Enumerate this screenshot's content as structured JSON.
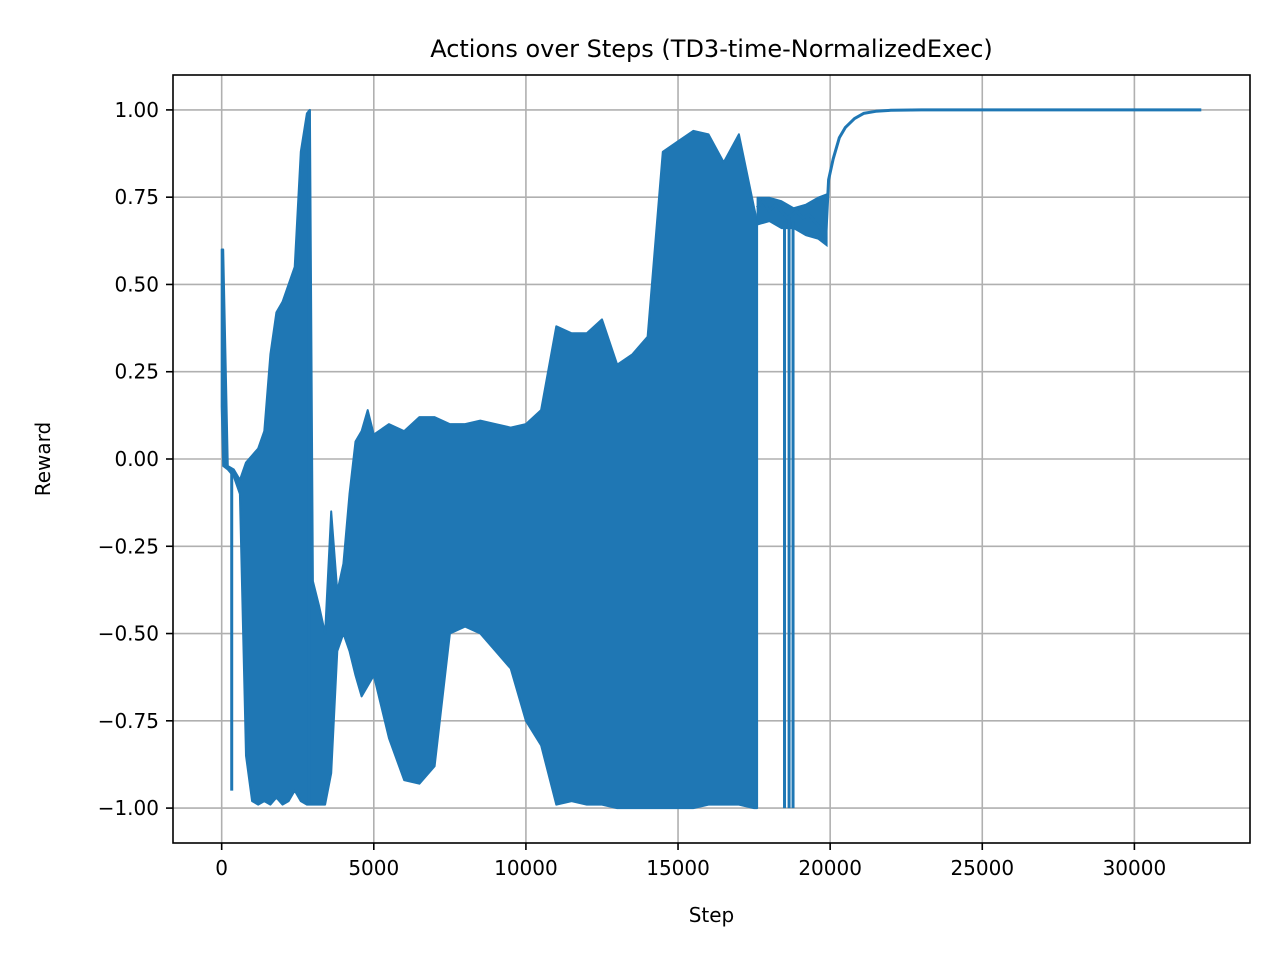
{
  "chart_data": {
    "type": "line",
    "title": "Actions over Steps (TD3-time-NormalizedExec)",
    "xlabel": "Step",
    "ylabel": "Reward",
    "xlim": [
      -1600,
      33800
    ],
    "ylim": [
      -1.1,
      1.1
    ],
    "x_ticks": [
      0,
      5000,
      10000,
      15000,
      20000,
      25000,
      30000
    ],
    "x_tick_labels": [
      "0",
      "5000",
      "10000",
      "15000",
      "20000",
      "25000",
      "30000"
    ],
    "y_ticks": [
      -1.0,
      -0.75,
      -0.5,
      -0.25,
      0.0,
      0.25,
      0.5,
      0.75,
      1.0
    ],
    "y_tick_labels": [
      "−1.00",
      "−0.75",
      "−0.50",
      "−0.25",
      "0.00",
      "0.25",
      "0.50",
      "0.75",
      "1.00"
    ],
    "grid": true,
    "series": [
      {
        "color": "#1f77b4",
        "envelope": {
          "x": [
            0,
            50,
            200,
            400,
            600,
            800,
            1000,
            1200,
            1400,
            1600,
            1800,
            2000,
            2200,
            2400,
            2600,
            2800,
            2900,
            3000,
            3200,
            3400,
            3600,
            3800,
            4000,
            4200,
            4400,
            4600,
            4800,
            5000,
            5500,
            6000,
            6500,
            7000,
            7500,
            8000,
            8500,
            9000,
            9500,
            10000,
            10500,
            11000,
            11500,
            12000,
            12500,
            13000,
            13500,
            14000,
            14500,
            15000,
            15500,
            16000,
            16500,
            17000,
            17500,
            17600
          ],
          "upper": [
            0.6,
            0.6,
            -0.02,
            -0.03,
            -0.06,
            -0.01,
            0.01,
            0.03,
            0.08,
            0.3,
            0.42,
            0.45,
            0.5,
            0.55,
            0.88,
            0.99,
            1.0,
            -0.35,
            -0.42,
            -0.5,
            -0.15,
            -0.38,
            -0.3,
            -0.1,
            0.05,
            0.08,
            0.14,
            0.07,
            0.1,
            0.08,
            0.12,
            0.12,
            0.1,
            0.1,
            0.11,
            0.1,
            0.09,
            0.1,
            0.14,
            0.38,
            0.36,
            0.36,
            0.4,
            0.27,
            0.3,
            0.35,
            0.88,
            0.91,
            0.94,
            0.93,
            0.85,
            0.93,
            0.72,
            0.68
          ],
          "lower": [
            0.15,
            -0.02,
            -0.03,
            -0.05,
            -0.1,
            -0.85,
            -0.98,
            -0.99,
            -0.98,
            -0.99,
            -0.97,
            -0.99,
            -0.98,
            -0.95,
            -0.98,
            -0.99,
            -0.99,
            -0.99,
            -0.99,
            -0.99,
            -0.9,
            -0.55,
            -0.5,
            -0.55,
            -0.62,
            -0.68,
            -0.65,
            -0.62,
            -0.8,
            -0.92,
            -0.93,
            -0.88,
            -0.5,
            -0.48,
            -0.5,
            -0.55,
            -0.6,
            -0.75,
            -0.82,
            -0.99,
            -0.98,
            -0.99,
            -0.99,
            -1.0,
            -1.0,
            -1.0,
            -1.0,
            -1.0,
            -1.0,
            -0.99,
            -0.99,
            -0.99,
            -1.0,
            -1.0
          ]
        },
        "spikes": [
          {
            "x": 330,
            "ymin": -0.95,
            "ymax": -0.04
          },
          {
            "x": 2880,
            "ymin": -0.99,
            "ymax": 1.0
          },
          {
            "x": 18500,
            "ymin": -1.0,
            "ymax": 0.68
          },
          {
            "x": 18650,
            "ymin": -1.0,
            "ymax": 0.7
          },
          {
            "x": 18780,
            "ymin": -1.0,
            "ymax": 0.68
          }
        ],
        "tail": {
          "x": [
            17600,
            17800,
            18000,
            18200,
            18400,
            18600,
            18900,
            19100,
            19300,
            19500,
            19700,
            19850,
            19950,
            20100,
            20300,
            20500,
            20800,
            21100,
            21500,
            22000,
            23000,
            25000,
            28000,
            32200
          ],
          "y": [
            0.72,
            0.74,
            0.71,
            0.73,
            0.71,
            0.69,
            0.71,
            0.69,
            0.7,
            0.68,
            0.66,
            0.63,
            0.8,
            0.86,
            0.92,
            0.95,
            0.975,
            0.99,
            0.996,
            0.999,
            1.0,
            1.0,
            1.0,
            1.0
          ]
        },
        "tail_band": {
          "x": [
            17600,
            18000,
            18400,
            18800,
            19200,
            19600,
            19900
          ],
          "upper": [
            0.75,
            0.75,
            0.74,
            0.72,
            0.73,
            0.75,
            0.76
          ],
          "lower": [
            0.67,
            0.68,
            0.66,
            0.66,
            0.64,
            0.63,
            0.61
          ]
        }
      }
    ]
  }
}
